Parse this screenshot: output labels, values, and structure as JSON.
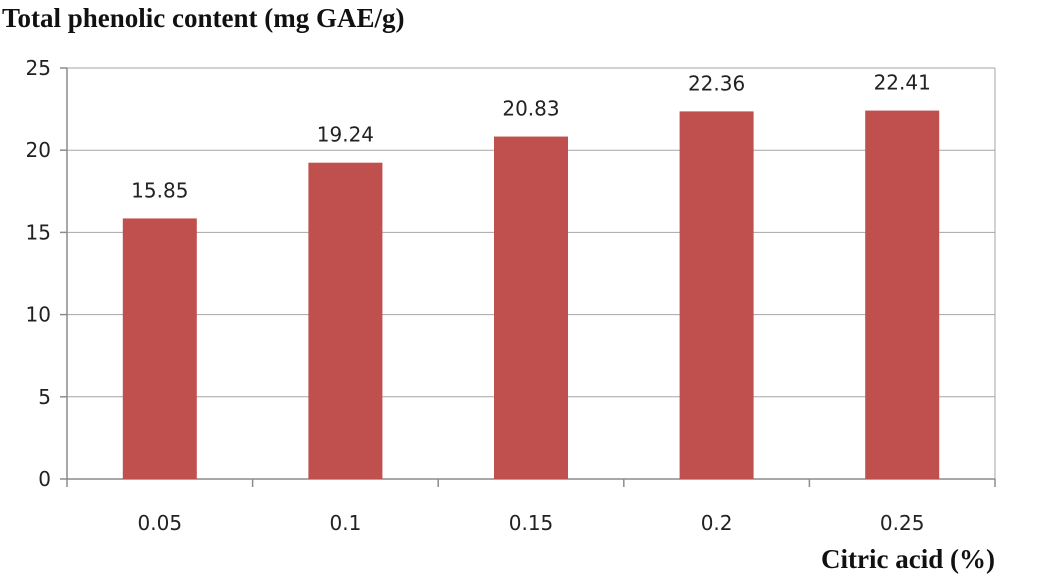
{
  "chart_data": {
    "type": "bar",
    "categories": [
      "0.05",
      "0.1",
      "0.15",
      "0.2",
      "0.25"
    ],
    "values": [
      15.85,
      19.24,
      20.83,
      22.36,
      22.41
    ],
    "data_labels": [
      "15.85",
      "19.24",
      "20.83",
      "22.36",
      "22.41"
    ],
    "ylabel": "Total phenolic content (mg GAE/g)",
    "xlabel": "Citric acid (%)",
    "ylim": [
      0,
      25
    ],
    "yticks": [
      0,
      5,
      10,
      15,
      20,
      25
    ],
    "ytick_labels": [
      "0",
      "5",
      "10",
      "15",
      "20",
      "25"
    ],
    "grid": true,
    "legend": "none",
    "bar_color": "#c0504d"
  }
}
